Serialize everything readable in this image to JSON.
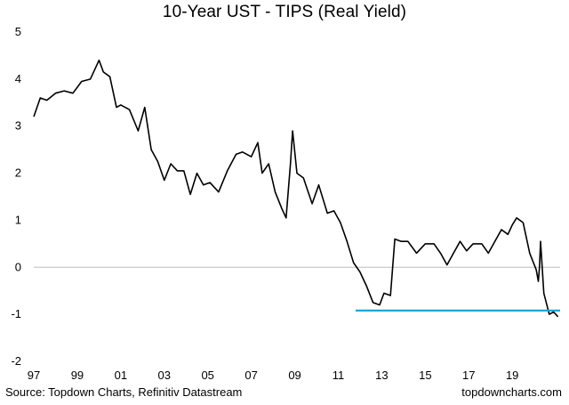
{
  "chart_data": {
    "type": "line",
    "title": "10-Year UST - TIPS (Real Yield)",
    "xlabel": "",
    "ylabel": "",
    "ylim": [
      -2,
      5
    ],
    "xlim": [
      1997,
      2021.2
    ],
    "y_ticks": [
      "5",
      "4",
      "3",
      "2",
      "1",
      "0",
      "-1",
      "-2"
    ],
    "x_ticks": [
      "97",
      "99",
      "01",
      "03",
      "05",
      "07",
      "09",
      "11",
      "13",
      "15",
      "17",
      "19"
    ],
    "grid": false,
    "series": [
      {
        "color": "#000000",
        "x": [
          1997.0,
          1997.3,
          1997.6,
          1998.0,
          1998.4,
          1998.8,
          1999.2,
          1999.6,
          2000.0,
          2000.2,
          2000.5,
          2000.8,
          2001.0,
          2001.4,
          2001.8,
          2002.1,
          2002.4,
          2002.7,
          2003.0,
          2003.3,
          2003.6,
          2003.9,
          2004.2,
          2004.5,
          2004.8,
          2005.1,
          2005.5,
          2005.9,
          2006.3,
          2006.6,
          2007.0,
          2007.3,
          2007.5,
          2007.8,
          2008.1,
          2008.4,
          2008.6,
          2008.8,
          2008.9,
          2009.1,
          2009.4,
          2009.8,
          2010.1,
          2010.5,
          2010.8,
          2011.1,
          2011.4,
          2011.7,
          2012.0,
          2012.3,
          2012.6,
          2012.9,
          2013.1,
          2013.4,
          2013.6,
          2013.9,
          2014.2,
          2014.6,
          2015.0,
          2015.4,
          2015.7,
          2016.0,
          2016.3,
          2016.6,
          2016.9,
          2017.2,
          2017.6,
          2017.9,
          2018.2,
          2018.5,
          2018.8,
          2019.0,
          2019.2,
          2019.5,
          2019.8,
          2020.1,
          2020.2,
          2020.25,
          2020.3,
          2020.45,
          2020.7,
          2020.9,
          2021.1
        ],
        "values": [
          3.2,
          3.6,
          3.55,
          3.7,
          3.75,
          3.7,
          3.95,
          4.0,
          4.4,
          4.15,
          4.05,
          3.4,
          3.45,
          3.35,
          2.9,
          3.4,
          2.5,
          2.25,
          1.85,
          2.2,
          2.05,
          2.05,
          1.55,
          2.0,
          1.75,
          1.8,
          1.6,
          2.05,
          2.4,
          2.45,
          2.35,
          2.65,
          2.0,
          2.2,
          1.6,
          1.25,
          1.05,
          2.2,
          2.9,
          2.0,
          1.9,
          1.35,
          1.75,
          1.15,
          1.2,
          0.95,
          0.55,
          0.1,
          -0.1,
          -0.4,
          -0.75,
          -0.8,
          -0.55,
          -0.6,
          0.6,
          0.55,
          0.55,
          0.3,
          0.5,
          0.5,
          0.3,
          0.05,
          0.3,
          0.55,
          0.35,
          0.5,
          0.5,
          0.3,
          0.55,
          0.8,
          0.7,
          0.9,
          1.05,
          0.95,
          0.3,
          -0.05,
          -0.3,
          0.0,
          0.55,
          -0.55,
          -1.0,
          -0.95,
          -1.05
        ]
      },
      {
        "color": "#1aa7dc",
        "x": [
          2011.8,
          2021.2
        ],
        "values": [
          -0.92,
          -0.92
        ]
      }
    ]
  },
  "footer": {
    "source": "Source: Topdown Charts, Refinitiv Datastream",
    "site": "topdowncharts.com"
  }
}
